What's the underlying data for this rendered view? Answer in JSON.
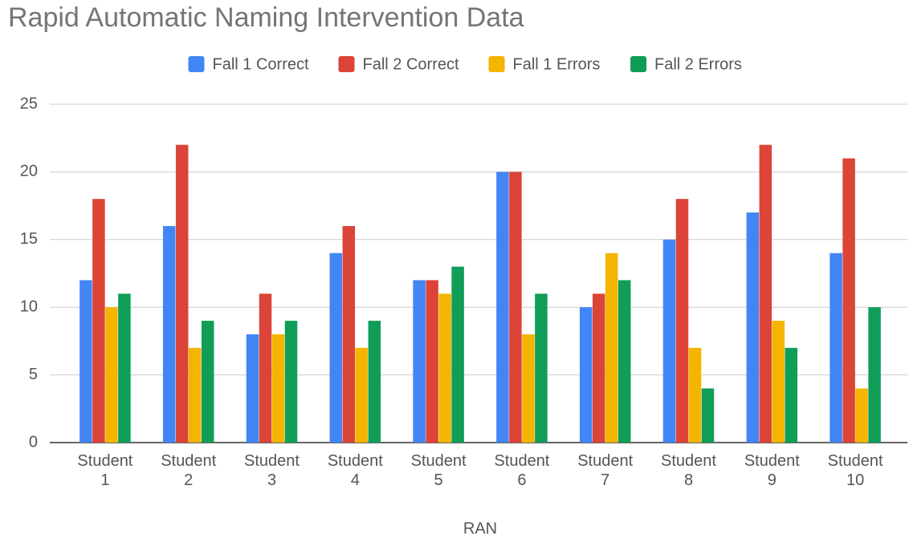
{
  "chart_data": {
    "type": "bar",
    "title": "Rapid Automatic Naming Intervention Data",
    "x_label": "RAN",
    "categories": [
      "Student 1",
      "Student 2",
      "Student 3",
      "Student 4",
      "Student 5",
      "Student 6",
      "Student 7",
      "Student 8",
      "Student 9",
      "Student 10"
    ],
    "series": [
      {
        "name": "Fall 1 Correct",
        "color": "#4285f4",
        "values": [
          12,
          16,
          8,
          14,
          12,
          20,
          10,
          15,
          17,
          14
        ]
      },
      {
        "name": "Fall 2 Correct",
        "color": "#db4437",
        "values": [
          18,
          22,
          11,
          16,
          12,
          20,
          11,
          18,
          22,
          21
        ]
      },
      {
        "name": "Fall 1 Errors",
        "color": "#f4b400",
        "values": [
          10,
          7,
          8,
          7,
          11,
          8,
          14,
          7,
          9,
          4
        ]
      },
      {
        "name": "Fall 2 Errors",
        "color": "#0f9d58",
        "values": [
          11,
          9,
          9,
          9,
          13,
          11,
          12,
          4,
          7,
          10
        ]
      }
    ],
    "ylim": [
      0,
      25
    ],
    "yticks": [
      0,
      5,
      10,
      15,
      20,
      25
    ],
    "grid": true,
    "legend": "top"
  }
}
